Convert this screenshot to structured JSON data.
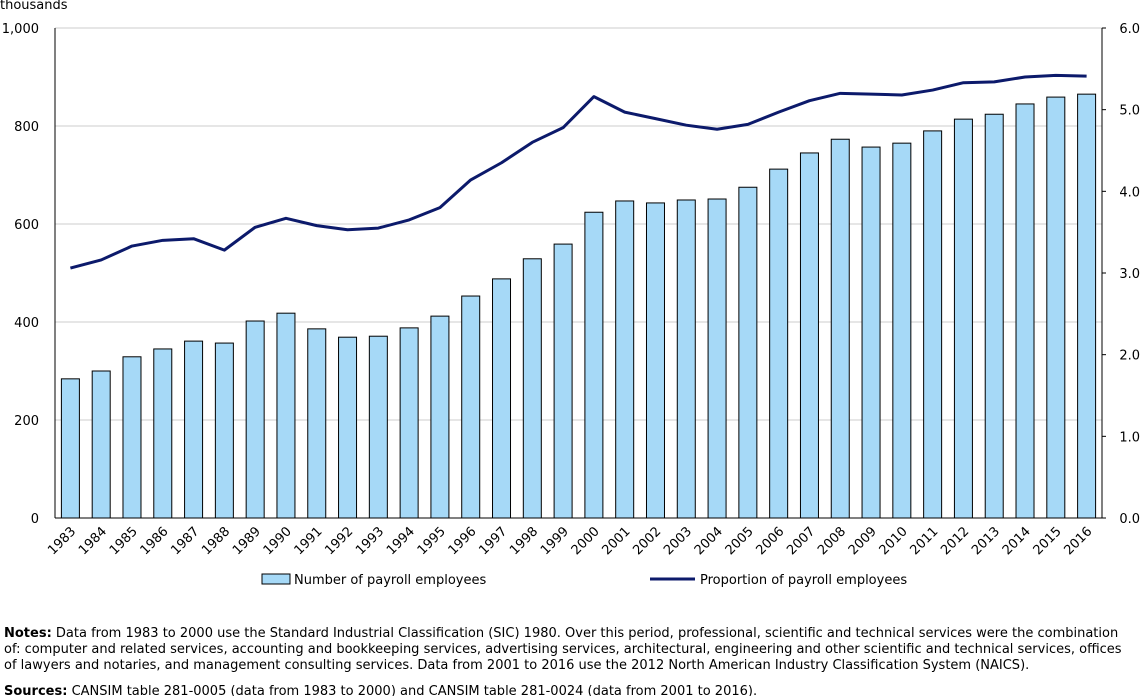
{
  "chart_data": {
    "type": "bar",
    "y_unit_label": "thousands",
    "categories": [
      "1983",
      "1984",
      "1985",
      "1986",
      "1987",
      "1988",
      "1989",
      "1990",
      "1991",
      "1992",
      "1993",
      "1994",
      "1995",
      "1996",
      "1997",
      "1998",
      "1999",
      "2000",
      "2001",
      "2002",
      "2003",
      "2004",
      "2005",
      "2006",
      "2007",
      "2008",
      "2009",
      "2010",
      "2011",
      "2012",
      "2013",
      "2014",
      "2015",
      "2016"
    ],
    "series": [
      {
        "name": "Number of payroll employees",
        "type": "bar",
        "axis": "y",
        "color": "#a6d9f7",
        "values": [
          284,
          300,
          329,
          345,
          361,
          357,
          402,
          418,
          386,
          369,
          371,
          388,
          412,
          453,
          488,
          529,
          559,
          624,
          647,
          643,
          649,
          651,
          675,
          712,
          745,
          773,
          757,
          765,
          790,
          814,
          824,
          845,
          859,
          865
        ]
      },
      {
        "name": "Proportion of payroll employees",
        "type": "line",
        "axis": "y2",
        "color": "#0c1a6b",
        "values": [
          3.06,
          3.16,
          3.33,
          3.4,
          3.42,
          3.28,
          3.56,
          3.67,
          3.58,
          3.53,
          3.55,
          3.65,
          3.8,
          4.14,
          4.35,
          4.6,
          4.78,
          5.16,
          4.97,
          4.89,
          4.81,
          4.76,
          4.82,
          4.97,
          5.11,
          5.2,
          5.19,
          5.18,
          5.24,
          5.33,
          5.34,
          5.4,
          5.42,
          5.41
        ]
      }
    ],
    "ylim": [
      0,
      1000
    ],
    "yticks": [
      0,
      200,
      400,
      600,
      800,
      {
        "value": 1000,
        "label": "1,000"
      }
    ],
    "y2lim": [
      0,
      6
    ],
    "y2ticks": [
      {
        "value": 0,
        "label": "0.0"
      },
      {
        "value": 1,
        "label": "1.0"
      },
      {
        "value": 2,
        "label": "2.0"
      },
      {
        "value": 3,
        "label": "3.0"
      },
      {
        "value": 4,
        "label": "4.0"
      },
      {
        "value": 5,
        "label": "5.0"
      },
      {
        "value": 6,
        "label": "6.0"
      }
    ],
    "grid": true,
    "legend": "bottom"
  },
  "notes": {
    "label": "Notes:",
    "text": "Data from 1983 to 2000 use the Standard Industrial Classification (SIC) 1980. Over this period, professional, scientific and technical services were the combination of: computer and related services, accounting and bookkeeping services, advertising services, architectural, engineering and other scientific and technical services, offices of lawyers and notaries, and management consulting services. Data from 2001 to 2016 use the 2012 North American Industry Classification System (NAICS)."
  },
  "sources": {
    "label": "Sources:",
    "text": "CANSIM table 281-0005 (data from 1983 to 2000) and CANSIM table 281-0024 (data from 2001 to 2016)."
  }
}
